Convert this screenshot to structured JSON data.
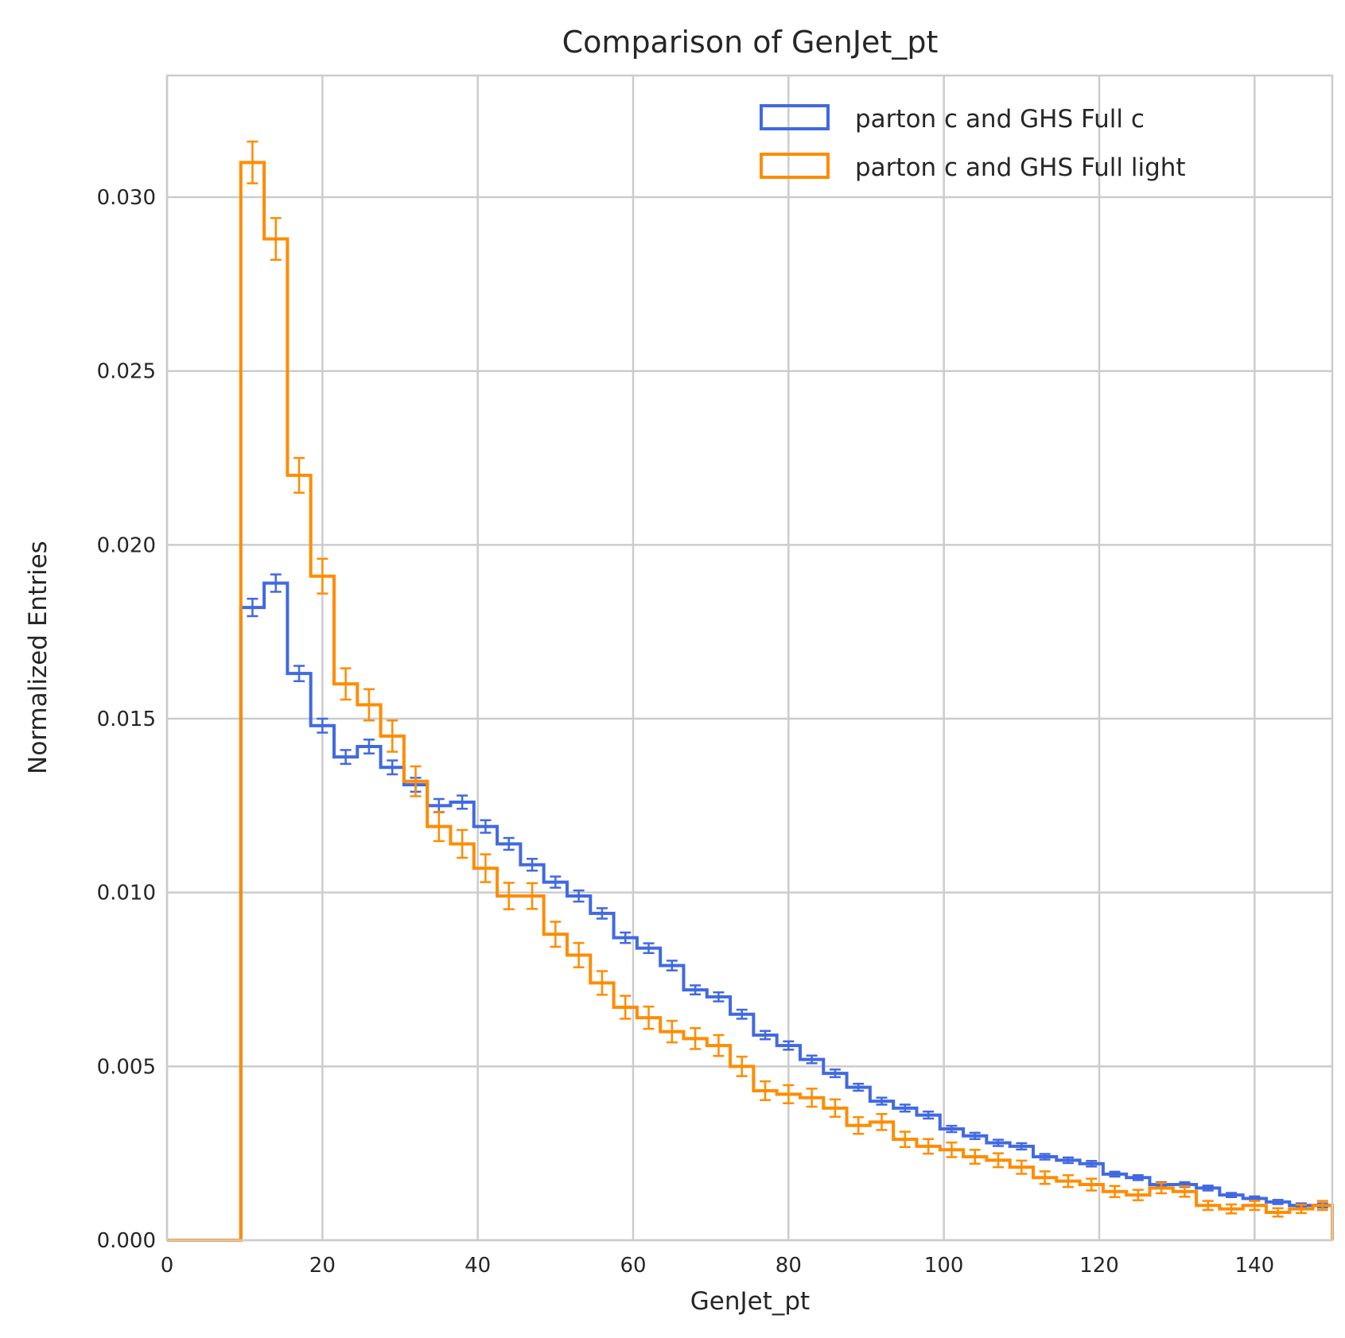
{
  "chart_data": {
    "type": "histogram-step",
    "title": "Comparison of GenJet_pt",
    "xlabel": "GenJet_pt",
    "ylabel": "Normalized Entries",
    "xlim": [
      0,
      150
    ],
    "ylim": [
      0,
      0.0335
    ],
    "xticks": [
      0,
      20,
      40,
      60,
      80,
      100,
      120,
      140
    ],
    "xtick_labels": [
      "0",
      "20",
      "40",
      "60",
      "80",
      "100",
      "120",
      "140"
    ],
    "yticks": [
      0,
      0.005,
      0.01,
      0.015,
      0.02,
      0.025,
      0.03
    ],
    "ytick_labels": [
      "0.000",
      "0.005",
      "0.010",
      "0.015",
      "0.020",
      "0.025",
      "0.030"
    ],
    "grid": true,
    "legend_position": "top-right",
    "bin_edges": [
      0,
      3,
      6,
      9.5,
      12.5,
      15.5,
      18.5,
      21.5,
      24.5,
      27.5,
      30.5,
      33.5,
      36.5,
      39.5,
      42.5,
      45.5,
      48.5,
      51.5,
      54.5,
      57.5,
      60.5,
      63.5,
      66.5,
      69.5,
      72.5,
      75.5,
      78.5,
      81.5,
      84.5,
      87.5,
      90.5,
      93.5,
      96.5,
      99.5,
      102.5,
      105.5,
      108.5,
      111.5,
      114.5,
      117.5,
      120.5,
      123.5,
      126.5,
      129.5,
      132.5,
      135.5,
      138.5,
      141.5,
      144.5,
      147.5,
      150
    ],
    "series": [
      {
        "name": "parton c and GHS Full c",
        "color": "#4169e1",
        "values": [
          0,
          0,
          0,
          0.0182,
          0.0189,
          0.0163,
          0.0148,
          0.0139,
          0.0142,
          0.0136,
          0.0131,
          0.0125,
          0.0126,
          0.0119,
          0.0114,
          0.0108,
          0.0103,
          0.0099,
          0.0094,
          0.0087,
          0.0084,
          0.0079,
          0.0072,
          0.007,
          0.0065,
          0.0059,
          0.0056,
          0.0052,
          0.0048,
          0.0044,
          0.004,
          0.0038,
          0.0036,
          0.0032,
          0.003,
          0.0028,
          0.0027,
          0.0024,
          0.0023,
          0.0022,
          0.0019,
          0.0018,
          0.0016,
          0.0016,
          0.0015,
          0.0013,
          0.0012,
          0.0011,
          0.001,
          0.001
        ],
        "errors": [
          0,
          0,
          0,
          0.00025,
          0.00025,
          0.00022,
          0.0002,
          0.0002,
          0.0002,
          0.0002,
          0.0002,
          0.00019,
          0.00019,
          0.00018,
          0.00017,
          0.00017,
          0.00016,
          0.00016,
          0.00015,
          0.00015,
          0.00014,
          0.00014,
          0.00013,
          0.00013,
          0.00013,
          0.00012,
          0.00012,
          0.00011,
          0.00011,
          0.0001,
          0.0001,
          0.0001,
          0.0001,
          9e-05,
          9e-05,
          9e-05,
          9e-05,
          8e-05,
          8e-05,
          8e-05,
          7e-05,
          7e-05,
          7e-05,
          7e-05,
          7e-05,
          6e-05,
          6e-05,
          6e-05,
          6e-05,
          6e-05
        ]
      },
      {
        "name": "parton c and GHS Full light",
        "color": "#ff8c00",
        "values": [
          0,
          0,
          0,
          0.031,
          0.0288,
          0.022,
          0.0191,
          0.016,
          0.0154,
          0.0145,
          0.0132,
          0.0119,
          0.0114,
          0.0107,
          0.0099,
          0.0099,
          0.0088,
          0.0082,
          0.0074,
          0.0067,
          0.0064,
          0.006,
          0.0058,
          0.0056,
          0.005,
          0.0043,
          0.0042,
          0.0041,
          0.0038,
          0.0033,
          0.0034,
          0.0029,
          0.0027,
          0.0026,
          0.0024,
          0.0023,
          0.0021,
          0.0018,
          0.0017,
          0.0016,
          0.0014,
          0.0013,
          0.0015,
          0.0014,
          0.001,
          0.0009,
          0.001,
          0.0008,
          0.0009,
          0.001
        ],
        "errors": [
          0,
          0,
          0,
          0.0006,
          0.0006,
          0.0005,
          0.0005,
          0.00045,
          0.00045,
          0.00045,
          0.00043,
          0.00042,
          0.0004,
          0.0004,
          0.00038,
          0.00037,
          0.00036,
          0.00035,
          0.00034,
          0.00033,
          0.00032,
          0.00031,
          0.0003,
          0.0003,
          0.00028,
          0.00027,
          0.00026,
          0.00026,
          0.00025,
          0.00024,
          0.00023,
          0.00022,
          0.00021,
          0.00021,
          0.0002,
          0.0002,
          0.00019,
          0.00018,
          0.00017,
          0.00017,
          0.00016,
          0.00015,
          0.00015,
          0.00015,
          0.00013,
          0.00013,
          0.00013,
          0.00012,
          0.00012,
          0.00013
        ]
      }
    ]
  }
}
